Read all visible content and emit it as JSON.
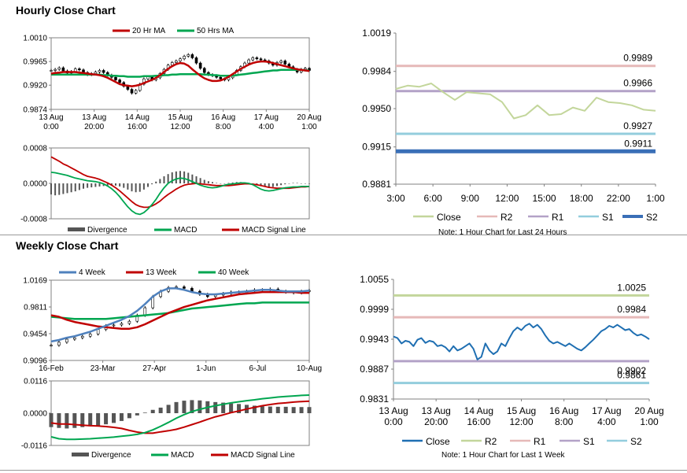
{
  "sections": {
    "hourly_title": "Hourly Close Chart",
    "weekly_title": "Weekly Close Chart"
  },
  "colors": {
    "ma20": "#c00000",
    "ma50": "#00a650",
    "ma4": "#4f81bd",
    "ma13": "#c00000",
    "ma40": "#00a650",
    "divergence": "#555555",
    "macd": "#00a650",
    "signal": "#c00000",
    "close_hourly": "#c3d69b",
    "close_weekly": "#1f6fb2",
    "r2": "#e6b9b8",
    "r2_weekly": "#c3d69b",
    "r1": "#b3a2c7",
    "s1": "#93cddd",
    "s2": "#3a6fb7"
  },
  "chart_data": [
    {
      "id": "hourly_price",
      "type": "line",
      "legend": [
        "20 Hr MA",
        "50 Hrs MA"
      ],
      "yticks": [
        "1.0010",
        "0.9965",
        "0.9920",
        "0.9874"
      ],
      "ylim": [
        0.9874,
        1.001
      ],
      "x_tick_labels": [
        [
          "13 Aug",
          "0:00"
        ],
        [
          "13 Aug",
          "20:00"
        ],
        [
          "14 Aug",
          "16:00"
        ],
        [
          "15 Aug",
          "12:00"
        ],
        [
          "16 Aug",
          "8:00"
        ],
        [
          "17 Aug",
          "4:00"
        ],
        [
          "20 Aug",
          "1:00"
        ]
      ],
      "candle_close": [
        0.9948,
        0.995,
        0.9953,
        0.9947,
        0.9943,
        0.9946,
        0.9951,
        0.9949,
        0.9944,
        0.994,
        0.9942,
        0.9945,
        0.9948,
        0.9944,
        0.9939,
        0.9935,
        0.993,
        0.9925,
        0.9918,
        0.9912,
        0.9905,
        0.991,
        0.9922,
        0.9932,
        0.9936,
        0.993,
        0.9934,
        0.9942,
        0.995,
        0.9958,
        0.9963,
        0.9966,
        0.997,
        0.9975,
        0.9978,
        0.9972,
        0.9962,
        0.9952,
        0.9944,
        0.994,
        0.9938,
        0.9935,
        0.9932,
        0.993,
        0.9934,
        0.994,
        0.9948,
        0.9955,
        0.9962,
        0.9968,
        0.9972,
        0.997,
        0.9968,
        0.9966,
        0.9962,
        0.9958,
        0.9963,
        0.9966,
        0.996,
        0.9955,
        0.995,
        0.9945,
        0.995,
        0.9952,
        0.9948
      ],
      "series": [
        {
          "name": "20 Hr MA",
          "color_key": "ma20",
          "values": [
            0.9942,
            0.9943,
            0.9944,
            0.9945,
            0.9945,
            0.9945,
            0.9945,
            0.9944,
            0.9943,
            0.9942,
            0.9941,
            0.994,
            0.9939,
            0.9937,
            0.9934,
            0.993,
            0.9926,
            0.9922,
            0.992,
            0.9919,
            0.9918,
            0.9919,
            0.9921,
            0.9924,
            0.9927,
            0.993,
            0.9934,
            0.9939,
            0.9945,
            0.9951,
            0.9956,
            0.996,
            0.9962,
            0.9961,
            0.9957,
            0.995,
            0.9944,
            0.9938,
            0.9933,
            0.993,
            0.9928,
            0.9928,
            0.9929,
            0.9932,
            0.9936,
            0.9941,
            0.9946,
            0.9951,
            0.9955,
            0.9959,
            0.9962,
            0.9964,
            0.9965,
            0.9965,
            0.9964,
            0.9962,
            0.996,
            0.9958,
            0.9956,
            0.9954,
            0.9952,
            0.995,
            0.9949,
            0.9948,
            0.9947
          ]
        },
        {
          "name": "50 Hrs MA",
          "color_key": "ma50",
          "values": [
            0.994,
            0.994,
            0.994,
            0.994,
            0.994,
            0.994,
            0.994,
            0.994,
            0.994,
            0.994,
            0.994,
            0.994,
            0.994,
            0.9939,
            0.9939,
            0.9938,
            0.9938,
            0.9937,
            0.9937,
            0.9936,
            0.9936,
            0.9936,
            0.9936,
            0.9937,
            0.9937,
            0.9937,
            0.9938,
            0.9938,
            0.9939,
            0.9939,
            0.994,
            0.994,
            0.9941,
            0.9941,
            0.9941,
            0.9941,
            0.9941,
            0.9941,
            0.994,
            0.994,
            0.9939,
            0.9939,
            0.9938,
            0.9938,
            0.9938,
            0.9938,
            0.9939,
            0.994,
            0.9941,
            0.9942,
            0.9943,
            0.9944,
            0.9945,
            0.9946,
            0.9947,
            0.9948,
            0.9948,
            0.9949,
            0.9949,
            0.9949,
            0.9949,
            0.9949,
            0.9949,
            0.9948,
            0.9948
          ]
        }
      ]
    },
    {
      "id": "hourly_macd",
      "type": "line",
      "legend": [
        "Divergence",
        "MACD",
        "MACD Signal Line"
      ],
      "yticks": [
        "0.0008",
        "0.0000",
        "-0.0008"
      ],
      "ylim": [
        -0.0008,
        0.0008
      ],
      "divergence": [
        -0.00025,
        -0.00027,
        -0.00026,
        -0.00024,
        -0.00022,
        -0.0002,
        -0.00018,
        -0.00015,
        -0.00012,
        -0.0001,
        -9e-05,
        -8e-05,
        -7e-05,
        -6e-05,
        -5e-05,
        -4e-05,
        -5e-05,
        -7e-05,
        -0.0001,
        -0.00014,
        -0.00018,
        -0.0002,
        -0.00019,
        -0.00014,
        -8e-05,
        -2e-05,
        4e-05,
        0.0001,
        0.00016,
        0.00021,
        0.00025,
        0.00027,
        0.00028,
        0.00027,
        0.00024,
        0.0002,
        0.00016,
        0.00012,
        8e-05,
        5e-05,
        3e-05,
        1e-05,
        0.0,
        0.0,
        1e-05,
        2e-05,
        3e-05,
        3e-05,
        2e-05,
        0.0,
        -2e-05,
        -4e-05,
        -6e-05,
        -8e-05,
        -9e-05,
        -8e-05,
        -6e-05,
        -4e-05,
        -2e-05,
        0.0,
        1e-05,
        1e-05,
        0.0,
        0.0,
        0.0
      ],
      "series": [
        {
          "name": "MACD",
          "color_key": "macd",
          "values": [
            0.00025,
            0.00024,
            0.00022,
            0.0002,
            0.00018,
            0.00015,
            0.00012,
            0.0001,
            8e-05,
            6e-05,
            5e-05,
            4e-05,
            2e-05,
            -1e-05,
            -6e-05,
            -0.00012,
            -0.0002,
            -0.0003,
            -0.00042,
            -0.00053,
            -0.00062,
            -0.00068,
            -0.0007,
            -0.00066,
            -0.00058,
            -0.00048,
            -0.00036,
            -0.00022,
            -0.0001,
            0.0,
            6e-05,
            0.0001,
            0.00012,
            0.00011,
            8e-05,
            4e-05,
            0.0,
            -4e-05,
            -7e-05,
            -9e-05,
            -0.0001,
            -9e-05,
            -7e-05,
            -4e-05,
            -2e-05,
            -1e-05,
            0.0,
            1e-05,
            1e-05,
            0.0,
            -3e-05,
            -8e-05,
            -0.00013,
            -0.00016,
            -0.00017,
            -0.00016,
            -0.00014,
            -0.00012,
            -0.0001,
            -9e-05,
            -8e-05,
            -8e-05,
            -7e-05,
            -7e-05,
            -7e-05
          ]
        },
        {
          "name": "MACD Signal Line",
          "color_key": "signal",
          "values": [
            0.0006,
            0.00055,
            0.0005,
            0.00044,
            0.0004,
            0.00035,
            0.0003,
            0.00025,
            0.0002,
            0.00016,
            0.00014,
            0.00012,
            9e-05,
            5e-05,
            1e-05,
            -4e-05,
            -0.0001,
            -0.00017,
            -0.00025,
            -0.00033,
            -0.00041,
            -0.00048,
            -0.00052,
            -0.00054,
            -0.00054,
            -0.00051,
            -0.00046,
            -0.0004,
            -0.00032,
            -0.00025,
            -0.00019,
            -0.00013,
            -8e-05,
            -4e-05,
            -2e-05,
            -1e-05,
            0.0,
            -1e-05,
            -2e-05,
            -3e-05,
            -4e-05,
            -5e-05,
            -5e-05,
            -5e-05,
            -5e-05,
            -4e-05,
            -3e-05,
            -2e-05,
            -1e-05,
            -1e-05,
            -2e-05,
            -3e-05,
            -5e-05,
            -7e-05,
            -9e-05,
            -0.0001,
            -0.00011,
            -0.00011,
            -0.00011,
            -0.00011,
            -0.0001,
            -9e-05,
            -8e-05,
            -8e-05,
            -7e-05
          ]
        }
      ]
    },
    {
      "id": "hourly_pivot",
      "type": "line",
      "yticks": [
        "1.0019",
        "0.9984",
        "0.9950",
        "0.9915",
        "0.9881"
      ],
      "ylim": [
        0.9881,
        1.0019
      ],
      "xticks": [
        "3:00",
        "6:00",
        "9:00",
        "12:00",
        "15:00",
        "18:00",
        "22:00",
        "1:00"
      ],
      "levels": [
        {
          "name": "R2",
          "value": 0.9989,
          "label": "0.9989",
          "color_key": "r2"
        },
        {
          "name": "R1",
          "value": 0.9966,
          "label": "0.9966",
          "color_key": "r1"
        },
        {
          "name": "S1",
          "value": 0.9927,
          "label": "0.9927",
          "color_key": "s1"
        },
        {
          "name": "S2",
          "value": 0.9911,
          "label": "0.9911",
          "color_key": "s2"
        }
      ],
      "series": [
        {
          "name": "Close",
          "color_key": "close_hourly",
          "values": [
            0.9968,
            0.9971,
            0.997,
            0.9973,
            0.9965,
            0.9958,
            0.9965,
            0.9964,
            0.9963,
            0.9956,
            0.9941,
            0.9944,
            0.9953,
            0.9944,
            0.9945,
            0.9951,
            0.9948,
            0.996,
            0.9956,
            0.9955,
            0.9953,
            0.9949,
            0.9948
          ]
        }
      ],
      "legend": [
        "Close",
        "R2",
        "R1",
        "S1",
        "S2"
      ],
      "note": "Note: 1 Hour Chart for Last 24 Hours"
    },
    {
      "id": "weekly_price",
      "type": "line",
      "legend": [
        "4 Week",
        "13 Week",
        "40 Week"
      ],
      "yticks": [
        "1.0169",
        "0.9811",
        "0.9454",
        "0.9096"
      ],
      "ylim": [
        0.9096,
        1.0169
      ],
      "xticks": [
        "16-Feb",
        "23-Mar",
        "27-Apr",
        "1-Jun",
        "6-Jul",
        "10-Aug"
      ],
      "candle_close": [
        0.93,
        0.934,
        0.938,
        0.94,
        0.942,
        0.945,
        0.951,
        0.956,
        0.957,
        0.959,
        0.962,
        0.97,
        0.98,
        0.995,
        1.002,
        1.007,
        1.008,
        1.006,
        1.002,
        0.998,
        0.995,
        0.997,
        0.999,
        1.001,
        1.0,
        1.002,
        1.004,
        1.003,
        1.005,
        1.002,
        1.001,
        1.0,
        1.002,
        1.003
      ],
      "series": [
        {
          "name": "4 Week",
          "color_key": "ma4",
          "values": [
            0.935,
            0.937,
            0.94,
            0.942,
            0.945,
            0.948,
            0.952,
            0.956,
            0.96,
            0.964,
            0.969,
            0.976,
            0.985,
            0.995,
            1.002,
            1.006,
            1.006,
            1.004,
            1.001,
            0.999,
            0.998,
            0.998,
            0.999,
            1.0,
            1.001,
            1.002,
            1.003,
            1.004,
            1.004,
            1.003,
            1.002,
            1.002,
            1.002,
            1.003
          ]
        },
        {
          "name": "13 Week",
          "color_key": "ma13",
          "values": [
            0.97,
            0.968,
            0.964,
            0.961,
            0.959,
            0.957,
            0.955,
            0.954,
            0.953,
            0.952,
            0.952,
            0.954,
            0.958,
            0.963,
            0.968,
            0.973,
            0.977,
            0.981,
            0.984,
            0.987,
            0.99,
            0.992,
            0.994,
            0.996,
            0.998,
            0.999,
            1.0,
            1.001,
            1.001,
            1.001,
            1.001,
            1.001,
            1.0,
            1.0
          ]
        },
        {
          "name": "40 Week",
          "color_key": "ma40",
          "values": [
            0.968,
            0.967,
            0.966,
            0.965,
            0.965,
            0.965,
            0.965,
            0.965,
            0.966,
            0.967,
            0.968,
            0.969,
            0.97,
            0.971,
            0.972,
            0.973,
            0.975,
            0.977,
            0.979,
            0.98,
            0.981,
            0.982,
            0.983,
            0.984,
            0.985,
            0.986,
            0.986,
            0.987,
            0.987,
            0.987,
            0.987,
            0.987,
            0.987,
            0.987
          ]
        }
      ]
    },
    {
      "id": "weekly_macd",
      "type": "line",
      "legend": [
        "Divergence",
        "MACD",
        "MACD Signal Line"
      ],
      "yticks": [
        "0.0116",
        "0.0000",
        "-0.0116"
      ],
      "ylim": [
        -0.0116,
        0.0116
      ],
      "divergence": [
        -0.005,
        -0.0053,
        -0.0055,
        -0.0053,
        -0.005,
        -0.0047,
        -0.0044,
        -0.004,
        -0.0035,
        -0.0028,
        -0.0018,
        -0.0008,
        0.0002,
        0.0012,
        0.002,
        0.003,
        0.004,
        0.0045,
        0.0047,
        0.0046,
        0.0043,
        0.004,
        0.0038,
        0.0035,
        0.0033,
        0.003,
        0.0027,
        0.0025,
        0.0024,
        0.0023,
        0.0023,
        0.0022,
        0.0022,
        0.0022
      ],
      "series": [
        {
          "name": "MACD",
          "color_key": "macd",
          "values": [
            -0.0085,
            -0.0092,
            -0.0094,
            -0.0094,
            -0.0093,
            -0.0092,
            -0.009,
            -0.0088,
            -0.0086,
            -0.0083,
            -0.008,
            -0.0076,
            -0.007,
            -0.006,
            -0.0047,
            -0.0033,
            -0.0018,
            -0.0005,
            0.0006,
            0.0014,
            0.0021,
            0.0027,
            0.0032,
            0.0037,
            0.0041,
            0.0045,
            0.0048,
            0.0052,
            0.0055,
            0.0058,
            0.006,
            0.0062,
            0.0064,
            0.0065
          ]
        },
        {
          "name": "MACD Signal Line",
          "color_key": "signal",
          "values": [
            -0.0035,
            -0.0039,
            -0.0039,
            -0.0041,
            -0.0043,
            -0.0045,
            -0.0046,
            -0.0048,
            -0.0051,
            -0.0055,
            -0.0062,
            -0.0068,
            -0.0072,
            -0.0072,
            -0.0067,
            -0.0063,
            -0.0058,
            -0.005,
            -0.0041,
            -0.0032,
            -0.0022,
            -0.0013,
            -0.0006,
            0.0002,
            0.0008,
            0.0015,
            0.0021,
            0.0027,
            0.0031,
            0.0035,
            0.0037,
            0.004,
            0.0042,
            0.0043
          ]
        }
      ]
    },
    {
      "id": "weekly_pivot",
      "type": "line",
      "yticks": [
        "1.0055",
        "0.9999",
        "0.9943",
        "0.9887",
        "0.9831"
      ],
      "ylim": [
        0.9831,
        1.0055
      ],
      "x_tick_labels": [
        [
          "13 Aug",
          "0:00"
        ],
        [
          "13 Aug",
          "20:00"
        ],
        [
          "14 Aug",
          "16:00"
        ],
        [
          "15 Aug",
          "12:00"
        ],
        [
          "16 Aug",
          "8:00"
        ],
        [
          "17 Aug",
          "4:00"
        ],
        [
          "20 Aug",
          "1:00"
        ]
      ],
      "levels": [
        {
          "name": "R2",
          "value": 1.0025,
          "label": "1.0025",
          "color_key": "r2_weekly"
        },
        {
          "name": "R1",
          "value": 0.9984,
          "label": "0.9984",
          "color_key": "r2"
        },
        {
          "name": "S1",
          "value": 0.9902,
          "label": "0.9902",
          "color_key": "r1"
        },
        {
          "name": "S2",
          "value": 0.9861,
          "label": "0.9861",
          "color_key": "s1"
        }
      ],
      "series": [
        {
          "name": "Close",
          "color_key": "close_weekly",
          "values": [
            0.9948,
            0.9945,
            0.9935,
            0.994,
            0.9938,
            0.993,
            0.9942,
            0.9945,
            0.9936,
            0.994,
            0.9938,
            0.993,
            0.9932,
            0.9928,
            0.992,
            0.993,
            0.9922,
            0.9925,
            0.993,
            0.9935,
            0.9925,
            0.9905,
            0.991,
            0.9935,
            0.9922,
            0.9915,
            0.992,
            0.9935,
            0.993,
            0.9945,
            0.9958,
            0.9965,
            0.996,
            0.9968,
            0.9972,
            0.9965,
            0.997,
            0.9962,
            0.995,
            0.994,
            0.9935,
            0.9938,
            0.9934,
            0.993,
            0.9935,
            0.993,
            0.9925,
            0.9922,
            0.9928,
            0.9935,
            0.9942,
            0.995,
            0.9958,
            0.9962,
            0.9968,
            0.9965,
            0.997,
            0.9965,
            0.996,
            0.9962,
            0.9955,
            0.995,
            0.9952,
            0.9948,
            0.9943
          ]
        }
      ],
      "legend": [
        "Close",
        "R2",
        "R1",
        "S1",
        "S2"
      ],
      "note": "Note: 1 Hour Chart for Last 1 Week"
    }
  ]
}
